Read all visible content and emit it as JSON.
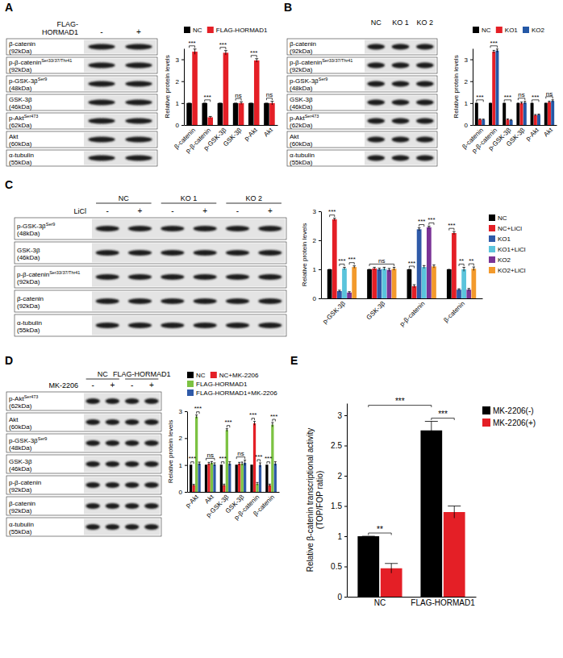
{
  "figure": {
    "panel_labels": [
      "A",
      "B",
      "C",
      "D",
      "E"
    ]
  },
  "blots": [
    {
      "treatment": {
        "label_lines": [
          "FLAG-",
          "HORMAD1"
        ],
        "signs": [
          "-",
          "+"
        ]
      },
      "rows": [
        {
          "name": "β-catenin",
          "size": "(92kDa)"
        },
        {
          "name": "p-β-catenin",
          "mod": "Ser33/37/Thr41",
          "size": "(92kDa)"
        },
        {
          "name": "p-GSK-3β",
          "mod": "Ser9",
          "size": "(48kDa)"
        },
        {
          "name": "GSK-3β",
          "size": "(46kDa)"
        },
        {
          "name": "p-Akt",
          "mod": "Ser473",
          "size": "(62kDa)"
        },
        {
          "name": "Akt",
          "size": "(60kDa)"
        },
        {
          "name": "α-tubulin",
          "size": "(55kDa)"
        }
      ]
    },
    {
      "column_headers": [
        "NC",
        "KO 1",
        "KO 2"
      ],
      "rows": [
        {
          "name": "β-catenin",
          "size": "(92kDa)"
        },
        {
          "name": "p-β-catenin",
          "mod": "Ser33/37/Thr41",
          "size": "(92kDa)"
        },
        {
          "name": "p-GSK-3β",
          "mod": "Ser9",
          "size": "(48kDa)"
        },
        {
          "name": "GSK-3β",
          "size": "(46kDa)"
        },
        {
          "name": "p-Akt",
          "mod": "Ser473",
          "size": "(62kDa)"
        },
        {
          "name": "Akt",
          "size": "(60kDa)"
        },
        {
          "name": "α-tubulin",
          "size": "(55kDa)"
        }
      ]
    },
    {
      "column_headers": [
        "NC",
        "KO 1",
        "KO 2"
      ],
      "treatment": {
        "label_lines": [
          "LiCl"
        ],
        "signs": [
          "-",
          "+",
          "-",
          "+",
          "-",
          "+"
        ]
      },
      "rows": [
        {
          "name": "p-GSK-3β",
          "mod": "Ser9",
          "size": "(48kDa)"
        },
        {
          "name": "GSK-3β",
          "size": "(46kDa)"
        },
        {
          "name": "p-β-catenin",
          "mod": "Ser33/37/Thr41",
          "size": "(92kDa)"
        },
        {
          "name": "β-catenin",
          "size": "(92kDa)"
        },
        {
          "name": "α-tubulin",
          "size": "(55kDa)"
        }
      ]
    },
    {
      "column_headers": [
        "NC",
        "FLAG-HORMAD1"
      ],
      "treatment": {
        "label_lines": [
          "MK-2206"
        ],
        "signs": [
          "-",
          "+",
          "-",
          "+"
        ]
      },
      "rows": [
        {
          "name": "p-Akt",
          "mod": "Ser473",
          "size": "(62kDa)"
        },
        {
          "name": "Akt",
          "size": "(60kDa)"
        },
        {
          "name": "p-GSK-3β",
          "mod": "Ser9",
          "size": "(48kDa)"
        },
        {
          "name": "GSK-3β",
          "size": "(46kDa)"
        },
        {
          "name": "p-β-catenin",
          "size": "(92kDa)"
        },
        {
          "name": "β-catenin",
          "size": "(92kDa)"
        },
        {
          "name": "α-tubulin",
          "size": "(55kDa)"
        }
      ]
    }
  ],
  "chart_data": [
    {
      "type": "bar",
      "categories": [
        "β-catenin",
        "p-β-catenin",
        "p-GSK-3β",
        "GSK-3β",
        "p-Akt",
        "Akt"
      ],
      "series": [
        {
          "name": "NC",
          "color": "#000000",
          "values": [
            1,
            1,
            1,
            1,
            1,
            1
          ],
          "errors": [
            0,
            0,
            0,
            0,
            0,
            0
          ]
        },
        {
          "name": "FLAG-HORMAD1",
          "color": "#e41f26",
          "values": [
            3.35,
            0.35,
            3.3,
            1.0,
            2.95,
            1.0
          ],
          "errors": [
            0.12,
            0.04,
            0.1,
            0.06,
            0.08,
            0.08
          ]
        }
      ],
      "ylim": [
        0,
        3.5
      ],
      "yticks": [
        0,
        1,
        2,
        3
      ],
      "y_label": "Relative protein levels",
      "legend": "top",
      "annotations": [
        {
          "text": "***",
          "from": [
            0,
            0
          ],
          "to": [
            0,
            1
          ]
        },
        {
          "text": "***",
          "from": [
            1,
            0
          ],
          "to": [
            1,
            1
          ]
        },
        {
          "text": "***",
          "from": [
            2,
            0
          ],
          "to": [
            2,
            1
          ]
        },
        {
          "text": "ns",
          "from": [
            3,
            0
          ],
          "to": [
            3,
            1
          ]
        },
        {
          "text": "***",
          "from": [
            4,
            0
          ],
          "to": [
            4,
            1
          ]
        },
        {
          "text": "ns",
          "from": [
            5,
            0
          ],
          "to": [
            5,
            1
          ]
        }
      ]
    },
    {
      "type": "bar",
      "categories": [
        "β-catenin",
        "p-β-catenin",
        "p-GSK-3β",
        "GSK-3β",
        "p-Akt",
        "Akt"
      ],
      "series": [
        {
          "name": "NC",
          "color": "#000000",
          "values": [
            1,
            1,
            1,
            1,
            1,
            1
          ],
          "errors": [
            0,
            0,
            0,
            0,
            0,
            0
          ]
        },
        {
          "name": "KO1",
          "color": "#e41f26",
          "values": [
            0.25,
            3.35,
            0.25,
            1.0,
            0.45,
            1.05
          ],
          "errors": [
            0.03,
            0.06,
            0.03,
            0.05,
            0.03,
            0.04
          ]
        },
        {
          "name": "KO2",
          "color": "#2458a6",
          "values": [
            0.25,
            3.4,
            0.22,
            1.02,
            0.47,
            1.1
          ],
          "errors": [
            0.02,
            0.07,
            0.03,
            0.06,
            0.03,
            0.05
          ]
        }
      ],
      "ylim": [
        0,
        3.5
      ],
      "yticks": [
        0,
        1,
        2,
        3
      ],
      "y_label": "Relative protein levels",
      "legend": "top",
      "annotations": [
        {
          "text": "***",
          "from": [
            0,
            0
          ],
          "to": [
            0,
            2
          ]
        },
        {
          "text": "***",
          "from": [
            1,
            0
          ],
          "to": [
            1,
            2
          ]
        },
        {
          "text": "***",
          "from": [
            2,
            0
          ],
          "to": [
            2,
            2
          ]
        },
        {
          "text": "ns",
          "from": [
            3,
            0
          ],
          "to": [
            3,
            2
          ]
        },
        {
          "text": "***",
          "from": [
            4,
            0
          ],
          "to": [
            4,
            2
          ]
        },
        {
          "text": "ns",
          "from": [
            5,
            0
          ],
          "to": [
            5,
            2
          ]
        }
      ]
    },
    {
      "type": "bar",
      "categories": [
        "p-GSK-3β",
        "GSK-3β",
        "p-β-catenin",
        "β-catenin"
      ],
      "series": [
        {
          "name": "NC",
          "color": "#000000",
          "values": [
            1,
            1,
            1,
            1
          ],
          "errors": [
            0,
            0,
            0,
            0
          ]
        },
        {
          "name": "NC+LiCl",
          "color": "#e41f26",
          "values": [
            2.72,
            1.03,
            0.42,
            2.25
          ],
          "errors": [
            0.04,
            0.04,
            0.05,
            0.05
          ]
        },
        {
          "name": "KO1",
          "color": "#2f5aa8",
          "values": [
            0.25,
            1.0,
            2.38,
            0.3
          ],
          "errors": [
            0.03,
            0.04,
            0.05,
            0.03
          ]
        },
        {
          "name": "KO1+LiCl",
          "color": "#5bc4dc",
          "values": [
            1.03,
            1.02,
            1.08,
            1.0
          ],
          "errors": [
            0.04,
            0.05,
            0.05,
            0.07
          ]
        },
        {
          "name": "KO2",
          "color": "#7a3396",
          "values": [
            0.2,
            0.98,
            2.45,
            0.3
          ],
          "errors": [
            0.03,
            0.05,
            0.04,
            0.04
          ]
        },
        {
          "name": "KO2+LiCl",
          "color": "#f39a2c",
          "values": [
            1.08,
            1.02,
            1.1,
            1.02
          ],
          "errors": [
            0.04,
            0.05,
            0.05,
            0.06
          ]
        }
      ],
      "ylim": [
        0,
        3
      ],
      "yticks": [
        0,
        1,
        2,
        3
      ],
      "y_label": "Relative  protein levels",
      "legend": "right",
      "annotations": [
        {
          "text": "***",
          "from": [
            0,
            0
          ],
          "to": [
            0,
            1
          ]
        },
        {
          "text": "***",
          "from": [
            0,
            2
          ],
          "to": [
            0,
            3
          ]
        },
        {
          "text": "***",
          "from": [
            0,
            4
          ],
          "to": [
            0,
            5
          ]
        },
        {
          "text": "ns",
          "from": [
            1,
            0
          ],
          "to": [
            1,
            5
          ]
        },
        {
          "text": "***",
          "from": [
            2,
            0
          ],
          "to": [
            2,
            1
          ]
        },
        {
          "text": "***",
          "from": [
            2,
            2
          ],
          "to": [
            2,
            3
          ]
        },
        {
          "text": "***",
          "from": [
            2,
            4
          ],
          "to": [
            2,
            5
          ]
        },
        {
          "text": "***",
          "from": [
            3,
            0
          ],
          "to": [
            3,
            1
          ]
        },
        {
          "text": "**",
          "from": [
            3,
            2
          ],
          "to": [
            3,
            3
          ]
        },
        {
          "text": "**",
          "from": [
            3,
            4
          ],
          "to": [
            3,
            5
          ]
        }
      ]
    },
    {
      "type": "bar",
      "categories": [
        "p-Akt",
        "Akt",
        "p-GSK-3β",
        "GSK-3β",
        "p-β-catenin",
        "β-catenin"
      ],
      "series": [
        {
          "name": "NC",
          "color": "#000000",
          "values": [
            1,
            1,
            1,
            1,
            1,
            1
          ],
          "errors": [
            0,
            0,
            0,
            0,
            0,
            0
          ]
        },
        {
          "name": "NC+MK-2206",
          "color": "#e41f26",
          "values": [
            0.25,
            1.05,
            0.25,
            1.05,
            2.55,
            0.25
          ],
          "errors": [
            0.03,
            0.05,
            0.04,
            0.05,
            0.07,
            0.04
          ]
        },
        {
          "name": "FLAG-HORMAD1",
          "color": "#7cc242",
          "values": [
            2.8,
            1.08,
            2.3,
            1.05,
            0.3,
            2.5
          ],
          "errors": [
            0.06,
            0.05,
            0.05,
            0.06,
            0.05,
            0.08
          ]
        },
        {
          "name": "FLAG-HORMAD1+MK-2206",
          "color": "#2f5aa8",
          "values": [
            1.05,
            1.02,
            1.05,
            1.08,
            1.0,
            1.05
          ],
          "errors": [
            0.06,
            0.06,
            0.07,
            0.1,
            0.08,
            0.07
          ]
        }
      ],
      "ylim": [
        0,
        3
      ],
      "yticks": [
        0,
        1,
        2,
        3
      ],
      "y_label": "Relative protein levels",
      "legend": "top",
      "annotations": [
        {
          "text": "***",
          "from": [
            0,
            0
          ],
          "to": [
            0,
            1
          ]
        },
        {
          "text": "***",
          "from": [
            0,
            2
          ],
          "to": [
            0,
            3
          ]
        },
        {
          "text": "ns",
          "from": [
            1,
            0
          ],
          "to": [
            1,
            3
          ]
        },
        {
          "text": "***",
          "from": [
            2,
            0
          ],
          "to": [
            2,
            1
          ]
        },
        {
          "text": "***",
          "from": [
            2,
            2
          ],
          "to": [
            2,
            3
          ]
        },
        {
          "text": "ns",
          "from": [
            3,
            0
          ],
          "to": [
            3,
            3
          ]
        },
        {
          "text": "***",
          "from": [
            4,
            0
          ],
          "to": [
            4,
            1
          ]
        },
        {
          "text": "***",
          "from": [
            4,
            2
          ],
          "to": [
            4,
            3
          ]
        },
        {
          "text": "***",
          "from": [
            5,
            0
          ],
          "to": [
            5,
            1
          ]
        },
        {
          "text": "***",
          "from": [
            5,
            2
          ],
          "to": [
            5,
            3
          ]
        }
      ]
    },
    {
      "type": "bar",
      "categories": [
        "NC",
        "FLAG-HORMAD1"
      ],
      "series": [
        {
          "name": "MK-2206(-)",
          "color": "#000000",
          "values": [
            1,
            2.75
          ],
          "errors": [
            0,
            0.15
          ]
        },
        {
          "name": "MK-2206(+)",
          "color": "#e41f26",
          "values": [
            0.47,
            1.4
          ],
          "errors": [
            0.08,
            0.1
          ]
        }
      ],
      "ylim": [
        0,
        3.2
      ],
      "yticks": [
        0,
        0.5,
        1,
        1.5,
        2,
        2.5,
        3
      ],
      "y_label": "Relative β-catenin transcriptional activity (TOP/FOP ratio)",
      "legend": "right",
      "annotations": [
        {
          "text": "**",
          "from": [
            0,
            0
          ],
          "to": [
            0,
            1
          ]
        },
        {
          "text": "***",
          "from": [
            1,
            0
          ],
          "to": [
            1,
            1
          ]
        },
        {
          "text": "***",
          "from": [
            0,
            0
          ],
          "to": [
            1,
            0
          ]
        }
      ]
    }
  ]
}
